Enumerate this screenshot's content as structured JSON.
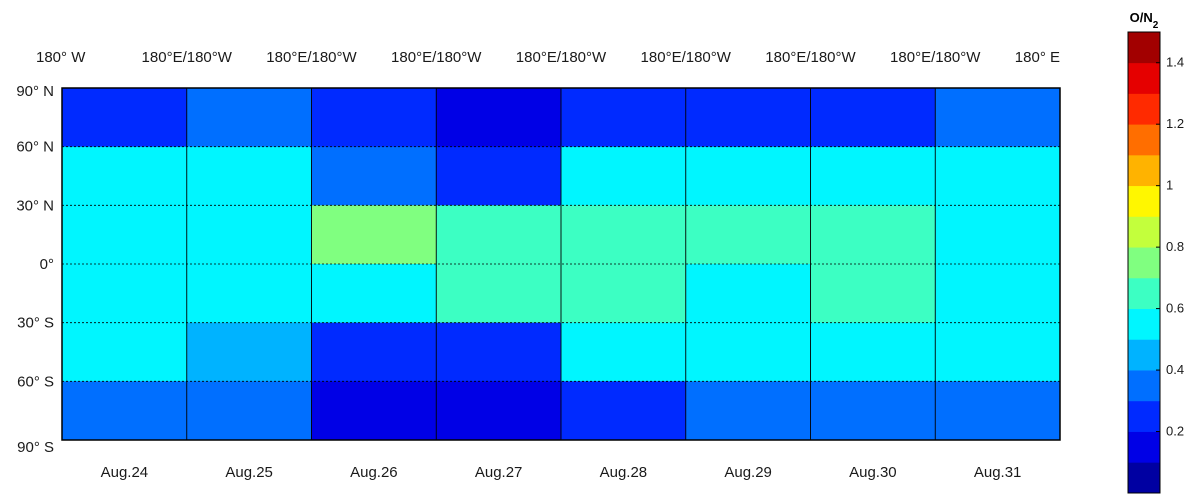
{
  "chart_data": {
    "type": "heatmap",
    "title": "",
    "colorbar": {
      "title_main": "O/N",
      "title_sub": "2",
      "min": 0.0,
      "max": 1.5,
      "ticks": [
        "0.2",
        "0.4",
        "0.6",
        "0.8",
        "1",
        "1.2",
        "1.4"
      ],
      "tick_values": [
        0.2,
        0.4,
        0.6,
        0.8,
        1.0,
        1.2,
        1.4
      ],
      "colormap": "jet",
      "levels": 15
    },
    "top_labels": [
      "180° W",
      "180°E/180°W",
      "180°E/180°W",
      "180°E/180°W",
      "180°E/180°W",
      "180°E/180°W",
      "180°E/180°W",
      "180°E/180°W",
      "180° E"
    ],
    "y_ticks": [
      "90° N",
      "60° N",
      "30° N",
      "0°",
      "30° S",
      "60° S",
      "90° S"
    ],
    "y_tick_values": [
      90,
      60,
      30,
      0,
      -30,
      -60,
      -90
    ],
    "ylim": [
      -90,
      90
    ],
    "days": [
      "Aug.24",
      "Aug.25",
      "Aug.26",
      "Aug.27",
      "Aug.28",
      "Aug.29",
      "Aug.30",
      "Aug.31"
    ],
    "grid": true,
    "latitude_bands": [
      75,
      45,
      15,
      -15,
      -45,
      -75
    ],
    "values": [
      [
        0.3,
        0.5,
        0.55,
        0.55,
        0.5,
        0.35
      ],
      [
        0.32,
        0.5,
        0.57,
        0.55,
        0.47,
        0.35
      ],
      [
        0.22,
        0.38,
        0.72,
        0.6,
        0.28,
        0.1
      ],
      [
        0.18,
        0.28,
        0.65,
        0.7,
        0.3,
        0.14
      ],
      [
        0.3,
        0.5,
        0.63,
        0.62,
        0.5,
        0.3
      ],
      [
        0.3,
        0.52,
        0.62,
        0.6,
        0.55,
        0.32
      ],
      [
        0.28,
        0.52,
        0.62,
        0.62,
        0.55,
        0.38
      ],
      [
        0.32,
        0.52,
        0.6,
        0.58,
        0.52,
        0.38
      ]
    ]
  }
}
